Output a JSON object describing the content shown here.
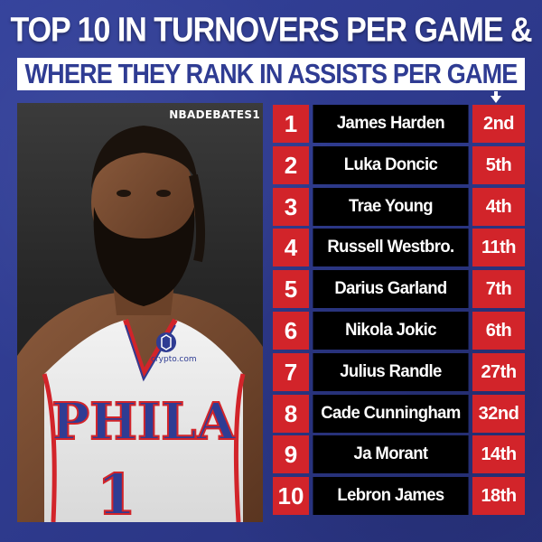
{
  "header": {
    "title_line1": "TOP 10 IN TURNOVERS PER GAME &",
    "title_line2": "WHERE THEY RANK IN ASSISTS PER GAME"
  },
  "watermark": "NBADEBATES1",
  "jersey": {
    "sponsor": "crypto.com",
    "team": "PHILA",
    "number": "1"
  },
  "players": [
    {
      "num": "1",
      "name": "James Harden",
      "rank": "2nd"
    },
    {
      "num": "2",
      "name": "Luka Doncic",
      "rank": "5th"
    },
    {
      "num": "3",
      "name": "Trae Young",
      "rank": "4th"
    },
    {
      "num": "4",
      "name": "Russell Westbro.",
      "rank": "11th"
    },
    {
      "num": "5",
      "name": "Darius Garland",
      "rank": "7th"
    },
    {
      "num": "6",
      "name": "Nikola Jokic",
      "rank": "6th"
    },
    {
      "num": "7",
      "name": "Julius Randle",
      "rank": "27th"
    },
    {
      "num": "8",
      "name": "Cade Cunningham",
      "rank": "32nd"
    },
    {
      "num": "9",
      "name": "Ja Morant",
      "rank": "14th"
    },
    {
      "num": "10",
      "name": "Lebron James",
      "rank": "18th"
    }
  ],
  "colors": {
    "background": "#2f3c93",
    "accent_red": "#d2242a",
    "name_cell": "#000000",
    "banner": "#ffffff"
  }
}
